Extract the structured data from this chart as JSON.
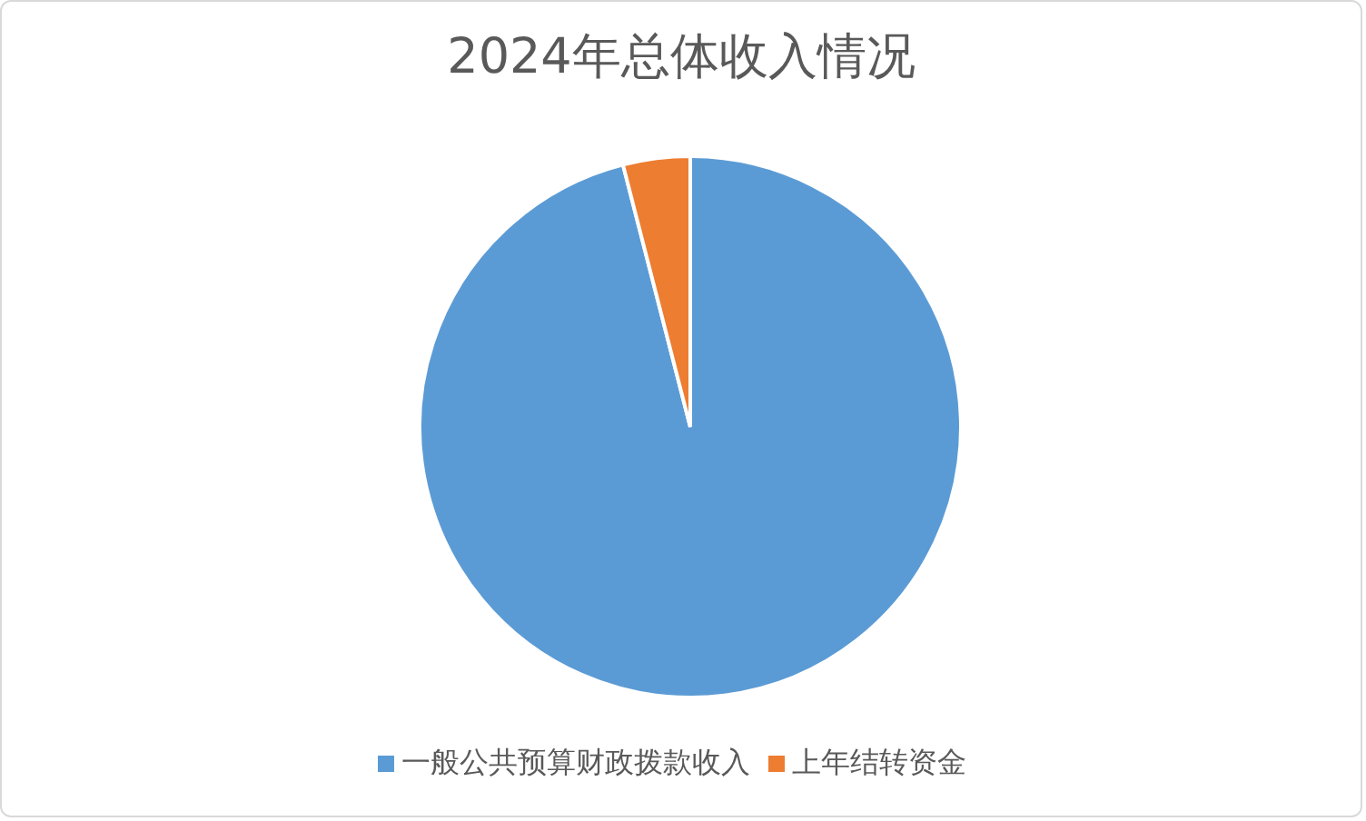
{
  "chart_data": {
    "type": "pie",
    "title": "2024年总体收入情况",
    "categories": [
      "一般公共预算财政拨款收入",
      "上年结转资金"
    ],
    "values": [
      96,
      4
    ],
    "colors": [
      "#5b9bd5",
      "#ed7d31"
    ],
    "legend": "bottom"
  }
}
